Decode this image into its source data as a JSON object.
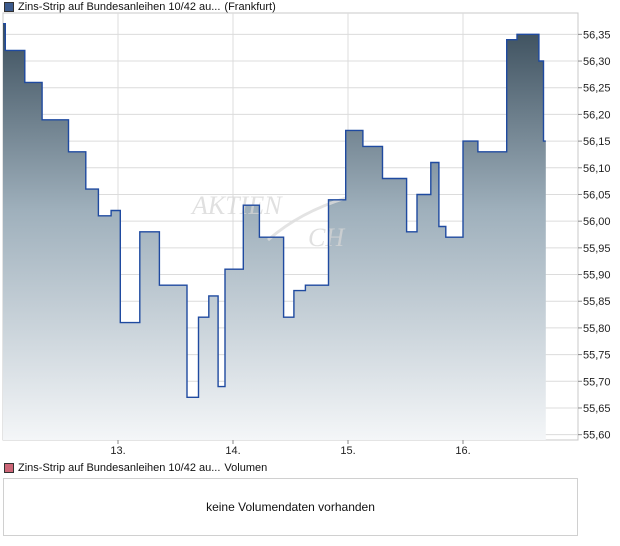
{
  "legend_price": {
    "label": "Zins-Strip auf Bundesanleihen 10/42 au...",
    "source": "(Frankfurt)",
    "color": "#3c5a8c"
  },
  "legend_volume": {
    "label": "Zins-Strip auf Bundesanleihen 10/42 au...",
    "source": "Volumen",
    "color": "#cc6677"
  },
  "watermark": "AKTIENCHECK",
  "volume_panel": {
    "message": "keine Volumendaten vorhanden"
  },
  "colors": {
    "line": "#1f4aa0",
    "fill_top": "#3b4e5c",
    "fill_bottom": "#f4f6f8",
    "grid": "#dcdcdc"
  },
  "chart_data": {
    "type": "area",
    "title": "",
    "xlabel": "",
    "ylabel": "",
    "x_ticks": [
      "13.",
      "14.",
      "15.",
      "16."
    ],
    "x_tick_positions": [
      1,
      2,
      3,
      4
    ],
    "xlim": [
      0,
      5
    ],
    "ylim": [
      55.59,
      56.39
    ],
    "y_ticks": [
      55.6,
      55.65,
      55.7,
      55.75,
      55.8,
      55.85,
      55.9,
      55.95,
      56.0,
      56.05,
      56.1,
      56.15,
      56.2,
      56.25,
      56.3,
      56.35
    ],
    "y_tick_labels": [
      "55,60",
      "55,65",
      "55,70",
      "55,75",
      "55,80",
      "55,85",
      "55,90",
      "55,95",
      "56,00",
      "56,05",
      "56,10",
      "56,15",
      "56,20",
      "56,25",
      "56,30",
      "56,35"
    ],
    "grid": true,
    "series": [
      {
        "values": [
          [
            0.0,
            56.37
          ],
          [
            0.02,
            56.37
          ],
          [
            0.02,
            56.32
          ],
          [
            0.19,
            56.32
          ],
          [
            0.19,
            56.26
          ],
          [
            0.34,
            56.26
          ],
          [
            0.34,
            56.19
          ],
          [
            0.57,
            56.19
          ],
          [
            0.57,
            56.13
          ],
          [
            0.72,
            56.13
          ],
          [
            0.72,
            56.06
          ],
          [
            0.83,
            56.06
          ],
          [
            0.83,
            56.01
          ],
          [
            0.94,
            56.01
          ],
          [
            0.94,
            56.02
          ],
          [
            1.02,
            56.02
          ],
          [
            1.02,
            55.81
          ],
          [
            1.19,
            55.81
          ],
          [
            1.19,
            55.98
          ],
          [
            1.36,
            55.98
          ],
          [
            1.36,
            55.88
          ],
          [
            1.6,
            55.88
          ],
          [
            1.6,
            55.67
          ],
          [
            1.7,
            55.67
          ],
          [
            1.7,
            55.82
          ],
          [
            1.79,
            55.82
          ],
          [
            1.79,
            55.86
          ],
          [
            1.87,
            55.86
          ],
          [
            1.87,
            55.69
          ],
          [
            1.93,
            55.69
          ],
          [
            1.93,
            55.91
          ],
          [
            2.09,
            55.91
          ],
          [
            2.09,
            56.03
          ],
          [
            2.23,
            56.03
          ],
          [
            2.23,
            55.97
          ],
          [
            2.44,
            55.97
          ],
          [
            2.44,
            55.82
          ],
          [
            2.53,
            55.82
          ],
          [
            2.53,
            55.87
          ],
          [
            2.63,
            55.87
          ],
          [
            2.63,
            55.88
          ],
          [
            2.83,
            55.88
          ],
          [
            2.83,
            56.04
          ],
          [
            2.98,
            56.04
          ],
          [
            2.98,
            56.17
          ],
          [
            3.13,
            56.17
          ],
          [
            3.13,
            56.14
          ],
          [
            3.3,
            56.14
          ],
          [
            3.3,
            56.08
          ],
          [
            3.51,
            56.08
          ],
          [
            3.51,
            55.98
          ],
          [
            3.6,
            55.98
          ],
          [
            3.6,
            56.05
          ],
          [
            3.72,
            56.05
          ],
          [
            3.72,
            56.11
          ],
          [
            3.79,
            56.11
          ],
          [
            3.79,
            55.99
          ],
          [
            3.85,
            55.99
          ],
          [
            3.85,
            55.97
          ],
          [
            4.0,
            55.97
          ],
          [
            4.0,
            56.15
          ],
          [
            4.13,
            56.15
          ],
          [
            4.13,
            56.13
          ],
          [
            4.38,
            56.13
          ],
          [
            4.38,
            56.34
          ],
          [
            4.47,
            56.34
          ],
          [
            4.47,
            56.35
          ],
          [
            4.66,
            56.35
          ],
          [
            4.66,
            56.3
          ],
          [
            4.7,
            56.3
          ],
          [
            4.7,
            56.15
          ],
          [
            4.72,
            56.15
          ]
        ]
      }
    ]
  }
}
